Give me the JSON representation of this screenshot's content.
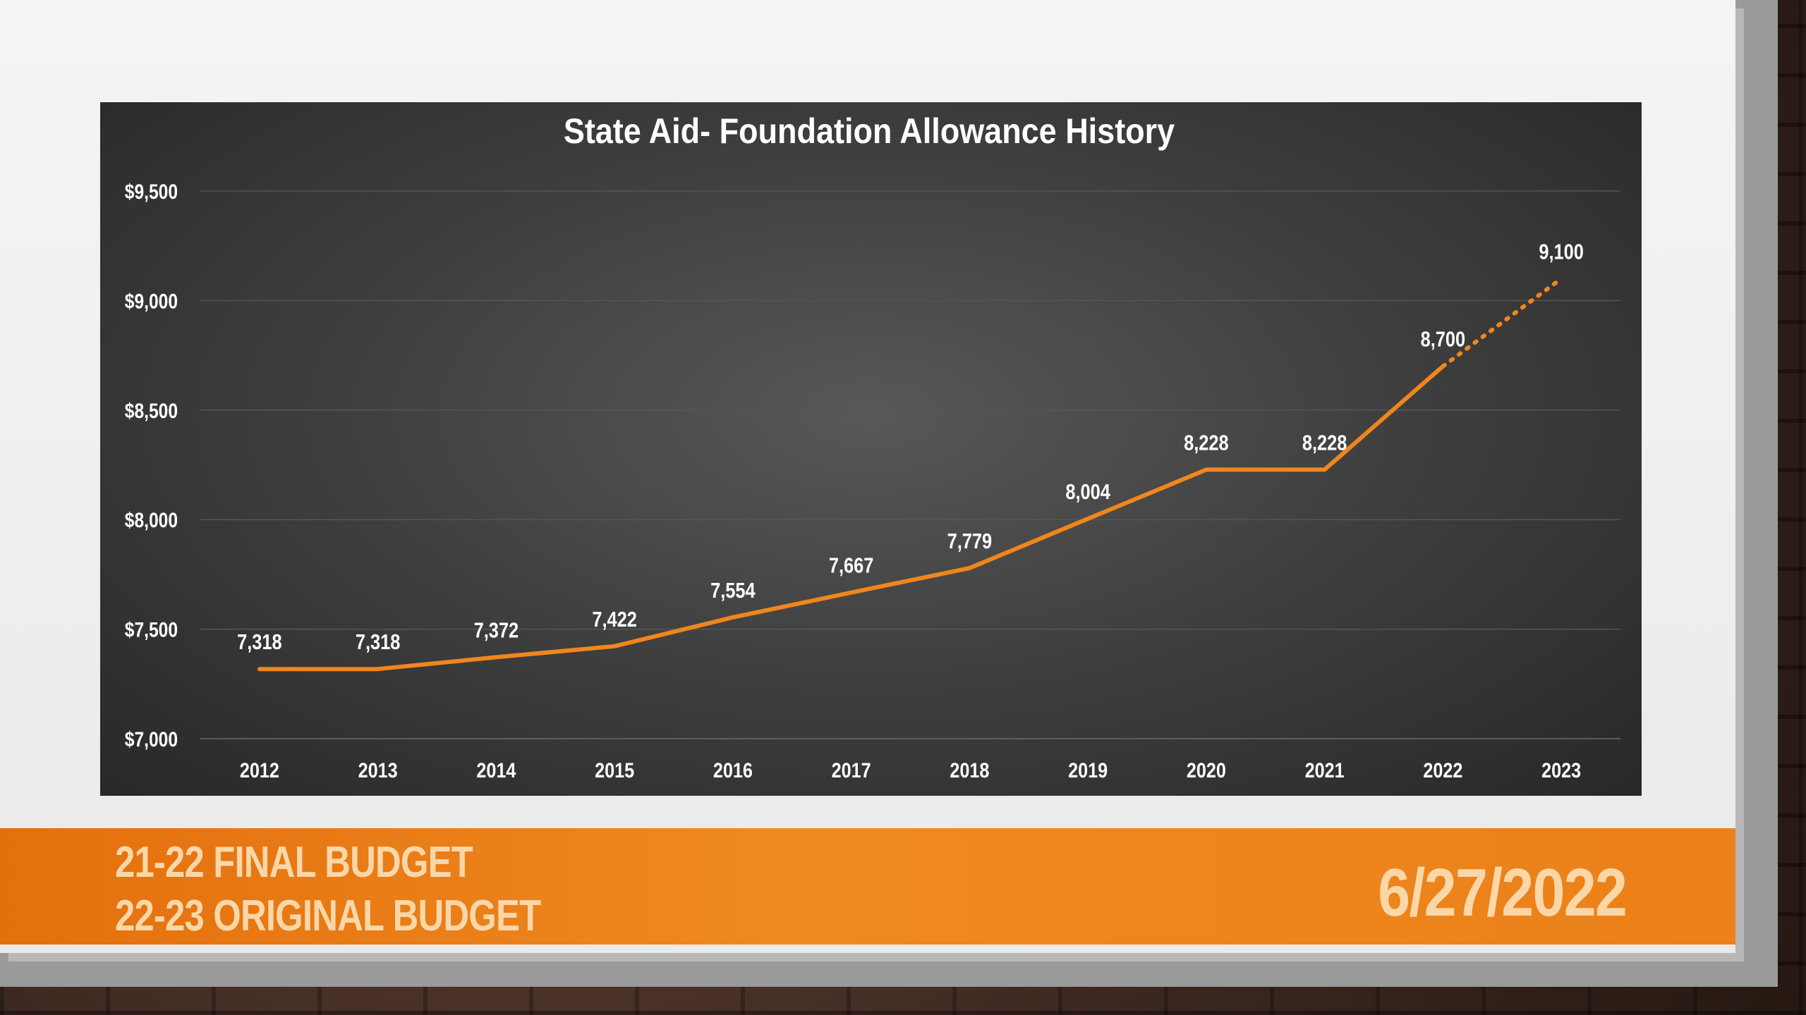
{
  "chart_data": {
    "type": "line",
    "title": "State Aid- Foundation Allowance History",
    "xlabel": "",
    "ylabel": "",
    "categories": [
      "2012",
      "2013",
      "2014",
      "2015",
      "2016",
      "2017",
      "2018",
      "2019",
      "2020",
      "2021",
      "2022",
      "2023"
    ],
    "series": [
      {
        "values": [
          7318,
          7318,
          7372,
          7422,
          7554,
          7667,
          7779,
          8004,
          8228,
          8228,
          8700,
          9100
        ],
        "data_labels": [
          "7,318",
          "7,318",
          "7,372",
          "7,422",
          "7,554",
          "7,667",
          "7,779",
          "8,004",
          "8,228",
          "8,228",
          "8,700",
          "9,100"
        ],
        "color": "#f0861c",
        "projected_last_segment": true
      }
    ],
    "ylim": [
      7000,
      9500
    ],
    "yticks": [
      7000,
      7500,
      8000,
      8500,
      9000,
      9500
    ],
    "ytick_labels": [
      "$7,000",
      "$7,500",
      "$8,000",
      "$8,500",
      "$9,000",
      "$9,500"
    ],
    "grid": true,
    "legend": "none"
  },
  "footer": {
    "line1": "21-22 FINAL BUDGET",
    "line2": "22-23 ORIGINAL BUDGET",
    "date": "6/27/2022"
  },
  "colors": {
    "accent": "#ec8019",
    "footer_text": "#fbd7a8",
    "chart_bg": "#3e3e3e"
  }
}
